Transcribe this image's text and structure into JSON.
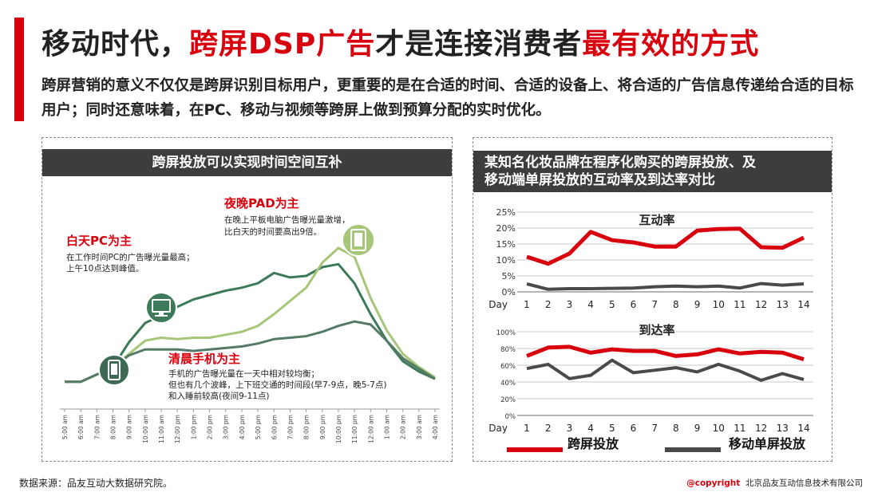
{
  "title": {
    "part1": "移动时代，",
    "part2": "跨屏DSP广告",
    "part3": "才是连接消费者",
    "part4": "最有效的方式"
  },
  "intro": "跨屏营销的意义不仅仅是跨屏识别目标用户，更重要的是在合适的时间、合适的设备上、将合适的广告信息传递给合适的目标用户；同时还意味着，在PC、移动与视频等跨屏上做到预算分配的实时优化。",
  "colors": {
    "accent_red": "#d9000d",
    "dark_header": "#3d3d3d",
    "pc_green": "#3d7a5a",
    "pad_green": "#a6c77a",
    "mobile_green": "#557a65",
    "series_gray": "#4a4a4a"
  },
  "left_panel": {
    "header": "跨屏投放可以实现时间空间互补",
    "annotations": [
      {
        "title": "白天PC为主",
        "lines": [
          "在工作时间PC的广告曝光量最高；",
          "上午10点达到峰值。"
        ],
        "icon": "monitor-icon"
      },
      {
        "title": "夜晚PAD为主",
        "lines": [
          "在晚上平板电脑广告曝光量激增，",
          "比白天的时间要高出9倍。"
        ],
        "icon": "tablet-icon"
      },
      {
        "title": "清晨手机为主",
        "lines": [
          "手机的广告曝光量在一天中相对较均衡；",
          "但也有几个波峰，上下班交通的时间段(早7-9点，晚5-7点)",
          "和入睡前较高(夜间9-11点)"
        ],
        "icon": "phone-icon"
      }
    ]
  },
  "right_panel": {
    "header_lines": [
      "某知名化妆品牌在程序化购买的跨屏投放、及",
      "移动端单屏投放的互动率及到达率对比"
    ]
  },
  "legend": [
    "跨屏投放",
    "移动单屏投放"
  ],
  "footnote": "数据来源：品友互动大数据研究院。",
  "copyright": {
    "mark": "@copyright",
    "company": "北京品友互动信息技术有限公司"
  },
  "chart_data": [
    {
      "type": "line",
      "title": "跨屏投放可以实现时间空间互补",
      "x": [
        "5:00 am",
        "6:00 am",
        "7:00 am",
        "8:00 am",
        "9:00 am",
        "10:00 am",
        "11:00 am",
        "12:00 pm",
        "1:00 pm",
        "2:00 pm",
        "3:00 pm",
        "4:00 pm",
        "5:00 pm",
        "6:00 pm",
        "7:00 pm",
        "8:00 pm",
        "9:00 pm",
        "10:00 pm",
        "11:00 pm",
        "12:00 am",
        "1:00 am",
        "2:00 am",
        "3:00 am",
        "4:00 am"
      ],
      "series": [
        {
          "values": [
            0.5,
            0.5,
            1.0,
            1.5,
            3.2,
            4.5,
            5.0,
            5.6,
            6.1,
            6.4,
            6.7,
            6.9,
            7.2,
            7.9,
            7.6,
            7.7,
            8.3,
            8.5,
            7.2,
            5.1,
            3.3,
            1.9,
            1.2,
            0.7
          ]
        },
        {
          "values": [
            0.5,
            0.5,
            1.0,
            1.5,
            2.4,
            3.3,
            3.5,
            3.4,
            3.5,
            3.5,
            3.7,
            3.9,
            4.3,
            5.1,
            6.0,
            6.9,
            8.6,
            9.6,
            9.0,
            6.2,
            4.0,
            2.4,
            1.5,
            0.8
          ]
        },
        {
          "values": [
            0.5,
            0.5,
            1.0,
            1.5,
            2.3,
            2.7,
            2.7,
            2.7,
            2.6,
            2.7,
            2.8,
            2.9,
            3.1,
            3.4,
            3.5,
            3.6,
            3.9,
            4.3,
            4.6,
            4.4,
            3.3,
            2.1,
            1.4,
            0.7
          ]
        }
      ]
    },
    {
      "type": "line",
      "title": "互动率",
      "x": [
        1,
        2,
        3,
        4,
        5,
        6,
        7,
        8,
        9,
        10,
        11,
        12,
        13,
        14
      ],
      "xlabel": "Day",
      "ylim": [
        0,
        0.25
      ],
      "yticks": [
        "0%",
        "5%",
        "10%",
        "15%",
        "20%",
        "25%"
      ],
      "series": [
        {
          "name": "跨屏投放",
          "values": [
            0.11,
            0.088,
            0.12,
            0.188,
            0.162,
            0.155,
            0.142,
            0.142,
            0.192,
            0.197,
            0.198,
            0.14,
            0.138,
            0.17
          ]
        },
        {
          "name": "移动单屏投放",
          "values": [
            0.025,
            0.008,
            0.01,
            0.01,
            0.011,
            0.012,
            0.016,
            0.018,
            0.016,
            0.018,
            0.012,
            0.026,
            0.021,
            0.025
          ]
        }
      ]
    },
    {
      "type": "line",
      "title": "到达率",
      "x": [
        1,
        2,
        3,
        4,
        5,
        6,
        7,
        8,
        9,
        10,
        11,
        12,
        13,
        14
      ],
      "xlabel": "Day",
      "ylim": [
        0,
        1.0
      ],
      "yticks": [
        "0%",
        "20%",
        "40%",
        "60%",
        "80%",
        "100%"
      ],
      "series": [
        {
          "name": "跨屏投放",
          "values": [
            0.71,
            0.81,
            0.82,
            0.75,
            0.79,
            0.77,
            0.77,
            0.71,
            0.73,
            0.79,
            0.74,
            0.76,
            0.75,
            0.67
          ]
        },
        {
          "name": "移动单屏投放",
          "values": [
            0.56,
            0.61,
            0.44,
            0.48,
            0.66,
            0.51,
            0.54,
            0.57,
            0.52,
            0.61,
            0.53,
            0.42,
            0.5,
            0.43
          ]
        }
      ]
    }
  ]
}
